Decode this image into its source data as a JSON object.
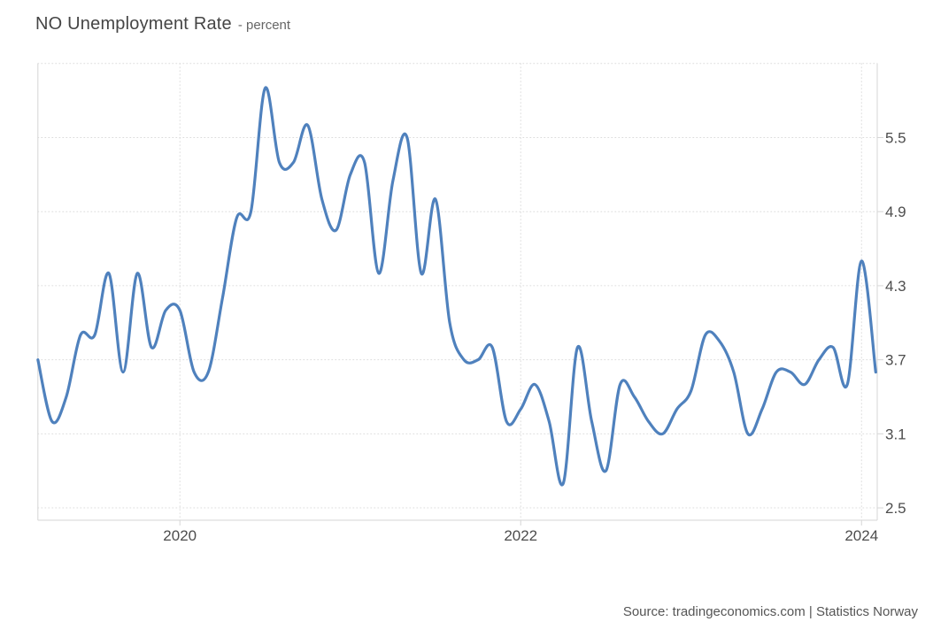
{
  "header": {
    "title": "NO Unemployment Rate",
    "subtitle": "- percent"
  },
  "footer": {
    "source": "Source: tradingeconomics.com | Statistics Norway"
  },
  "chart_data": {
    "type": "line",
    "title": "NO Unemployment Rate",
    "unit": "percent",
    "legend": "none",
    "grid": "dotted",
    "line_color": "#4f81bd",
    "grid_color": "#dcdcdc",
    "border_color": "#d6d6d6",
    "axis_label_color": "#4d4d4d",
    "ylim": [
      2.4,
      6.1
    ],
    "y_ticks": [
      5.5,
      4.9,
      4.3,
      3.7,
      3.1,
      2.5
    ],
    "x_tick_labels": [
      "2020",
      "2022",
      "2024"
    ],
    "x": [
      "2019-03",
      "2019-04",
      "2019-05",
      "2019-06",
      "2019-07",
      "2019-08",
      "2019-09",
      "2019-10",
      "2019-11",
      "2019-12",
      "2020-01",
      "2020-02",
      "2020-03",
      "2020-04",
      "2020-05",
      "2020-06",
      "2020-07",
      "2020-08",
      "2020-09",
      "2020-10",
      "2020-11",
      "2020-12",
      "2021-01",
      "2021-02",
      "2021-03",
      "2021-04",
      "2021-05",
      "2021-06",
      "2021-07",
      "2021-08",
      "2021-09",
      "2021-10",
      "2021-11",
      "2021-12",
      "2022-01",
      "2022-02",
      "2022-03",
      "2022-04",
      "2022-05",
      "2022-06",
      "2022-07",
      "2022-08",
      "2022-09",
      "2022-10",
      "2022-11",
      "2022-12",
      "2023-01",
      "2023-02",
      "2023-03",
      "2023-04",
      "2023-05",
      "2023-06",
      "2023-07",
      "2023-08",
      "2023-09",
      "2023-10",
      "2023-11",
      "2023-12",
      "2024-01",
      "2024-02"
    ],
    "series": [
      {
        "name": "NO Unemployment Rate",
        "values": [
          3.7,
          3.2,
          3.4,
          3.9,
          3.9,
          4.4,
          3.6,
          4.4,
          3.8,
          4.1,
          4.1,
          3.6,
          3.6,
          4.2,
          4.85,
          4.9,
          5.9,
          5.3,
          5.3,
          5.6,
          5.0,
          4.75,
          5.2,
          5.3,
          4.4,
          5.15,
          5.5,
          4.4,
          5.0,
          4.0,
          3.7,
          3.7,
          3.8,
          3.2,
          3.3,
          3.5,
          3.2,
          2.7,
          3.8,
          3.2,
          2.8,
          3.5,
          3.4,
          3.2,
          3.1,
          3.3,
          3.45,
          3.9,
          3.85,
          3.6,
          3.1,
          3.3,
          3.6,
          3.6,
          3.5,
          3.7,
          3.8,
          3.5,
          4.5,
          3.6
        ]
      }
    ]
  }
}
